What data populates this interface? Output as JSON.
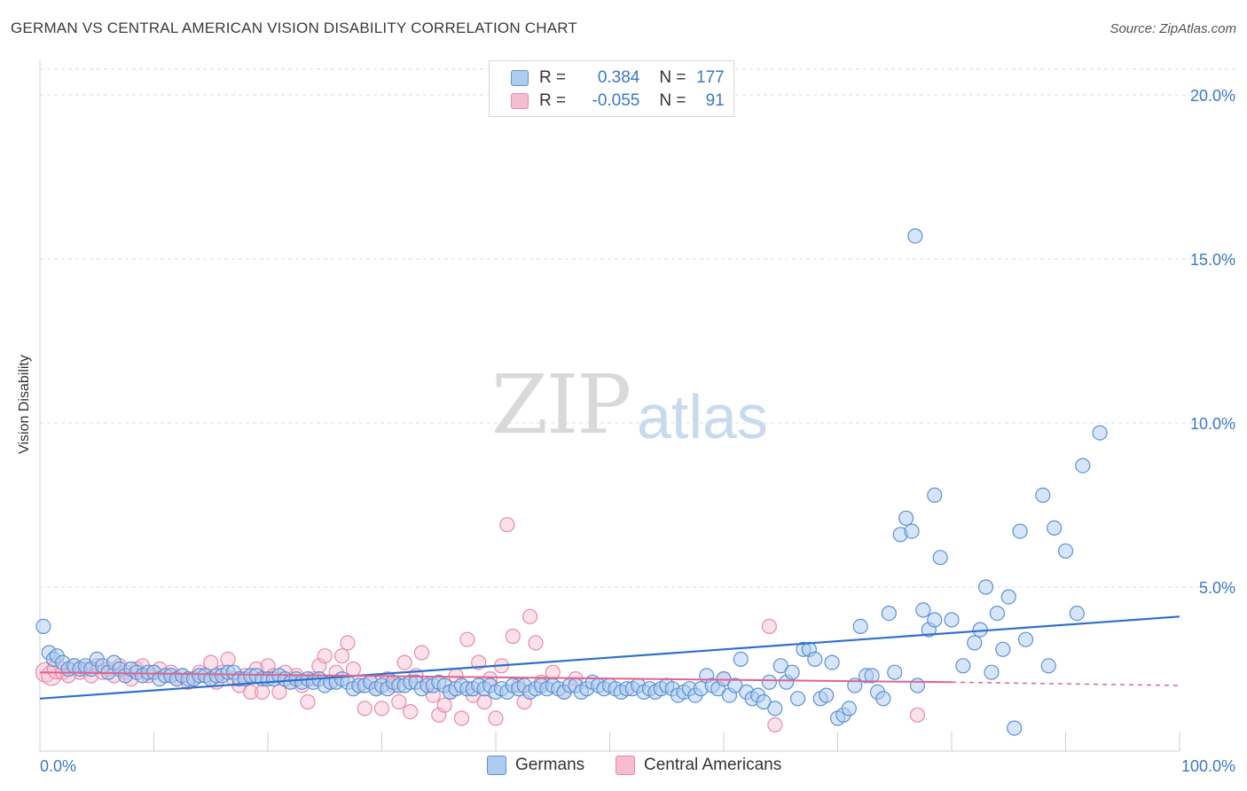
{
  "title": "GERMAN VS CENTRAL AMERICAN VISION DISABILITY CORRELATION CHART",
  "source": "Source: ZipAtlas.com",
  "watermark": {
    "zip": "ZIP",
    "atlas": "atlas"
  },
  "legend": {
    "rows": [
      {
        "r_label": "R = ",
        "r_value": "0.384",
        "n_label": "N = ",
        "n_value": "177"
      },
      {
        "r_label": "R = ",
        "r_value": "-0.055",
        "n_label": "N = ",
        "n_value": "91"
      }
    ]
  },
  "colors": {
    "blue_fill": "#aecbf0",
    "blue_stroke": "#5b92d6",
    "blue_line": "#2f6fcc",
    "pink_fill": "#f6bcd0",
    "pink_stroke": "#e98aab",
    "pink_line": "#e0648d",
    "grid": "#dcdcdc",
    "axis_text": "#3a78c9"
  },
  "chart_data": {
    "type": "scatter",
    "title": "GERMAN VS CENTRAL AMERICAN VISION DISABILITY CORRELATION CHART",
    "xlabel": "",
    "ylabel": "Vision Disability",
    "xlim": [
      0,
      100
    ],
    "ylim": [
      0,
      21
    ],
    "x_tick_labels": [
      "0.0%",
      "100.0%"
    ],
    "y_ticks": [
      5,
      10,
      15,
      20
    ],
    "y_tick_labels": [
      "5.0%",
      "10.0%",
      "15.0%",
      "20.0%"
    ],
    "grid": true,
    "legend_position": "top-center",
    "series": [
      {
        "name": "Germans",
        "r": 0.384,
        "n": 177,
        "trend": {
          "x": [
            0,
            100
          ],
          "y": [
            1.6,
            4.1
          ]
        },
        "points": [
          [
            0.3,
            3.8
          ],
          [
            0.8,
            3.0
          ],
          [
            1.2,
            2.8
          ],
          [
            1.5,
            2.9
          ],
          [
            2,
            2.7
          ],
          [
            2.5,
            2.5
          ],
          [
            3,
            2.6
          ],
          [
            3.5,
            2.5
          ],
          [
            4,
            2.6
          ],
          [
            4.5,
            2.5
          ],
          [
            5,
            2.8
          ],
          [
            5.5,
            2.6
          ],
          [
            6,
            2.4
          ],
          [
            6.5,
            2.7
          ],
          [
            7,
            2.5
          ],
          [
            7.5,
            2.3
          ],
          [
            8,
            2.5
          ],
          [
            8.5,
            2.4
          ],
          [
            9,
            2.3
          ],
          [
            9.5,
            2.4
          ],
          [
            10,
            2.4
          ],
          [
            10.5,
            2.2
          ],
          [
            11,
            2.3
          ],
          [
            11.5,
            2.3
          ],
          [
            12,
            2.2
          ],
          [
            12.5,
            2.3
          ],
          [
            13,
            2.2
          ],
          [
            13.5,
            2.2
          ],
          [
            14,
            2.3
          ],
          [
            14.5,
            2.3
          ],
          [
            15,
            2.2
          ],
          [
            15.5,
            2.3
          ],
          [
            16,
            2.3
          ],
          [
            16.5,
            2.4
          ],
          [
            17,
            2.4
          ],
          [
            17.5,
            2.2
          ],
          [
            18,
            2.2
          ],
          [
            18.5,
            2.3
          ],
          [
            19,
            2.3
          ],
          [
            19.5,
            2.2
          ],
          [
            20,
            2.2
          ],
          [
            20.5,
            2.2
          ],
          [
            21,
            2.3
          ],
          [
            21.5,
            2.2
          ],
          [
            22,
            2.1
          ],
          [
            22.5,
            2.2
          ],
          [
            23,
            2.1
          ],
          [
            23.5,
            2.2
          ],
          [
            24,
            2.1
          ],
          [
            24.5,
            2.2
          ],
          [
            25,
            2.0
          ],
          [
            25.5,
            2.1
          ],
          [
            26,
            2.1
          ],
          [
            26.5,
            2.2
          ],
          [
            27,
            2.1
          ],
          [
            27.5,
            1.9
          ],
          [
            28,
            2.0
          ],
          [
            28.5,
            2.0
          ],
          [
            29,
            2.1
          ],
          [
            29.5,
            1.9
          ],
          [
            30,
            2.0
          ],
          [
            30.5,
            1.9
          ],
          [
            31,
            2.1
          ],
          [
            31.5,
            2.0
          ],
          [
            32,
            2.0
          ],
          [
            32.5,
            2.1
          ],
          [
            33,
            2.1
          ],
          [
            33.5,
            1.9
          ],
          [
            34,
            2.0
          ],
          [
            34.5,
            2.0
          ],
          [
            35,
            2.1
          ],
          [
            35.5,
            2.0
          ],
          [
            36,
            1.8
          ],
          [
            36.5,
            1.9
          ],
          [
            37,
            2.0
          ],
          [
            37.5,
            1.9
          ],
          [
            38,
            1.9
          ],
          [
            38.5,
            2.0
          ],
          [
            39,
            1.9
          ],
          [
            39.5,
            2.0
          ],
          [
            40,
            1.8
          ],
          [
            40.5,
            1.9
          ],
          [
            41,
            1.8
          ],
          [
            41.5,
            2.0
          ],
          [
            42,
            1.9
          ],
          [
            42.5,
            2.0
          ],
          [
            43,
            1.8
          ],
          [
            43.5,
            1.9
          ],
          [
            44,
            2.0
          ],
          [
            44.5,
            1.9
          ],
          [
            45,
            2.0
          ],
          [
            45.5,
            1.9
          ],
          [
            46,
            1.8
          ],
          [
            46.5,
            2.0
          ],
          [
            47,
            2.0
          ],
          [
            47.5,
            1.8
          ],
          [
            48,
            1.9
          ],
          [
            48.5,
            2.1
          ],
          [
            49,
            2.0
          ],
          [
            49.5,
            1.9
          ],
          [
            50,
            2.0
          ],
          [
            50.5,
            1.9
          ],
          [
            51,
            1.8
          ],
          [
            51.5,
            1.9
          ],
          [
            52,
            1.9
          ],
          [
            52.5,
            2.0
          ],
          [
            53,
            1.8
          ],
          [
            53.5,
            1.9
          ],
          [
            54,
            1.8
          ],
          [
            54.5,
            1.9
          ],
          [
            55,
            2.0
          ],
          [
            55.5,
            1.9
          ],
          [
            56,
            1.7
          ],
          [
            56.5,
            1.8
          ],
          [
            57,
            1.9
          ],
          [
            57.5,
            1.7
          ],
          [
            58,
            1.9
          ],
          [
            58.5,
            2.3
          ],
          [
            59,
            2.0
          ],
          [
            59.5,
            1.9
          ],
          [
            60,
            2.2
          ],
          [
            60.5,
            1.7
          ],
          [
            61,
            2.0
          ],
          [
            61.5,
            2.8
          ],
          [
            62,
            1.8
          ],
          [
            62.5,
            1.6
          ],
          [
            63,
            1.7
          ],
          [
            63.5,
            1.5
          ],
          [
            64,
            2.1
          ],
          [
            64.5,
            1.3
          ],
          [
            65,
            2.6
          ],
          [
            65.5,
            2.1
          ],
          [
            66,
            2.4
          ],
          [
            66.5,
            1.6
          ],
          [
            67,
            3.1
          ],
          [
            67.5,
            3.1
          ],
          [
            68,
            2.8
          ],
          [
            68.5,
            1.6
          ],
          [
            69,
            1.7
          ],
          [
            69.5,
            2.7
          ],
          [
            70,
            1.0
          ],
          [
            70.5,
            1.1
          ],
          [
            71,
            1.3
          ],
          [
            71.5,
            2.0
          ],
          [
            72,
            3.8
          ],
          [
            72.5,
            2.3
          ],
          [
            73,
            2.3
          ],
          [
            73.5,
            1.8
          ],
          [
            74,
            1.6
          ],
          [
            74.5,
            4.2
          ],
          [
            75,
            2.4
          ],
          [
            75.5,
            6.6
          ],
          [
            76,
            7.1
          ],
          [
            76.5,
            6.7
          ],
          [
            77,
            2.0
          ],
          [
            77.5,
            4.3
          ],
          [
            78,
            3.7
          ],
          [
            78.5,
            4.0
          ],
          [
            79,
            5.9
          ],
          [
            80,
            4.0
          ],
          [
            81,
            2.6
          ],
          [
            82,
            3.3
          ],
          [
            82.5,
            3.7
          ],
          [
            83,
            5.0
          ],
          [
            83.5,
            2.4
          ],
          [
            84,
            4.2
          ],
          [
            84.5,
            3.1
          ],
          [
            85,
            4.7
          ],
          [
            85.5,
            0.7
          ],
          [
            86,
            6.7
          ],
          [
            86.5,
            3.4
          ],
          [
            88,
            7.8
          ],
          [
            88.5,
            2.6
          ],
          [
            89,
            6.8
          ],
          [
            90,
            6.1
          ],
          [
            91,
            4.2
          ],
          [
            91.5,
            8.7
          ],
          [
            93,
            9.7
          ],
          [
            76.8,
            15.7
          ],
          [
            78.5,
            7.8
          ]
        ]
      },
      {
        "name": "Central Americans",
        "r": -0.055,
        "n": 91,
        "trend": {
          "x": [
            0,
            80
          ],
          "y": [
            2.4,
            2.1
          ],
          "dashed_to_x": 100,
          "dashed_to_y": 2.0
        },
        "points": [
          [
            0.5,
            2.4
          ],
          [
            1,
            2.3
          ],
          [
            1.5,
            2.5
          ],
          [
            2,
            2.4
          ],
          [
            2.5,
            2.3
          ],
          [
            3,
            2.6
          ],
          [
            3.5,
            2.4
          ],
          [
            4,
            2.5
          ],
          [
            4.5,
            2.3
          ],
          [
            5,
            2.6
          ],
          [
            5.5,
            2.4
          ],
          [
            6,
            2.5
          ],
          [
            6.5,
            2.3
          ],
          [
            7,
            2.6
          ],
          [
            7.5,
            2.4
          ],
          [
            8,
            2.2
          ],
          [
            8.5,
            2.5
          ],
          [
            9,
            2.6
          ],
          [
            9.5,
            2.3
          ],
          [
            10,
            2.4
          ],
          [
            10.5,
            2.5
          ],
          [
            11,
            2.3
          ],
          [
            11.5,
            2.4
          ],
          [
            12,
            2.2
          ],
          [
            12.5,
            2.3
          ],
          [
            13,
            2.1
          ],
          [
            13.5,
            2.2
          ],
          [
            14,
            2.4
          ],
          [
            14.5,
            2.3
          ],
          [
            15,
            2.7
          ],
          [
            15.5,
            2.1
          ],
          [
            16,
            2.4
          ],
          [
            16.5,
            2.8
          ],
          [
            17,
            2.2
          ],
          [
            17.5,
            2.0
          ],
          [
            18,
            2.3
          ],
          [
            18.5,
            1.8
          ],
          [
            19,
            2.5
          ],
          [
            19.5,
            1.8
          ],
          [
            20,
            2.6
          ],
          [
            20.5,
            2.3
          ],
          [
            21,
            1.8
          ],
          [
            21.5,
            2.4
          ],
          [
            22,
            2.1
          ],
          [
            22.5,
            2.3
          ],
          [
            23,
            2.0
          ],
          [
            23.5,
            1.5
          ],
          [
            24,
            2.2
          ],
          [
            24.5,
            2.6
          ],
          [
            25,
            2.9
          ],
          [
            25.5,
            2.1
          ],
          [
            26,
            2.4
          ],
          [
            26.5,
            2.9
          ],
          [
            27,
            3.3
          ],
          [
            27.5,
            2.5
          ],
          [
            28,
            2.0
          ],
          [
            28.5,
            1.3
          ],
          [
            29,
            2.1
          ],
          [
            29.5,
            1.9
          ],
          [
            30,
            1.3
          ],
          [
            30.5,
            2.2
          ],
          [
            31,
            2.0
          ],
          [
            31.5,
            1.5
          ],
          [
            32,
            2.7
          ],
          [
            32.5,
            1.2
          ],
          [
            33,
            2.3
          ],
          [
            33.5,
            3.0
          ],
          [
            34,
            2.0
          ],
          [
            34.5,
            1.7
          ],
          [
            35,
            1.1
          ],
          [
            35.5,
            1.4
          ],
          [
            36,
            1.8
          ],
          [
            36.5,
            2.3
          ],
          [
            37,
            1.0
          ],
          [
            37.5,
            3.4
          ],
          [
            38,
            1.7
          ],
          [
            38.5,
            2.7
          ],
          [
            39,
            1.5
          ],
          [
            39.5,
            2.2
          ],
          [
            40,
            1.0
          ],
          [
            40.5,
            2.6
          ],
          [
            41,
            6.9
          ],
          [
            41.5,
            3.5
          ],
          [
            42,
            2.0
          ],
          [
            42.5,
            1.5
          ],
          [
            43,
            4.1
          ],
          [
            43.5,
            3.3
          ],
          [
            44,
            2.1
          ],
          [
            47,
            2.2
          ],
          [
            60,
            2.2
          ],
          [
            64,
            3.8
          ],
          [
            64.5,
            0.8
          ],
          [
            77,
            1.1
          ],
          [
            45,
            2.4
          ],
          [
            46,
            1.8
          ]
        ]
      }
    ]
  }
}
